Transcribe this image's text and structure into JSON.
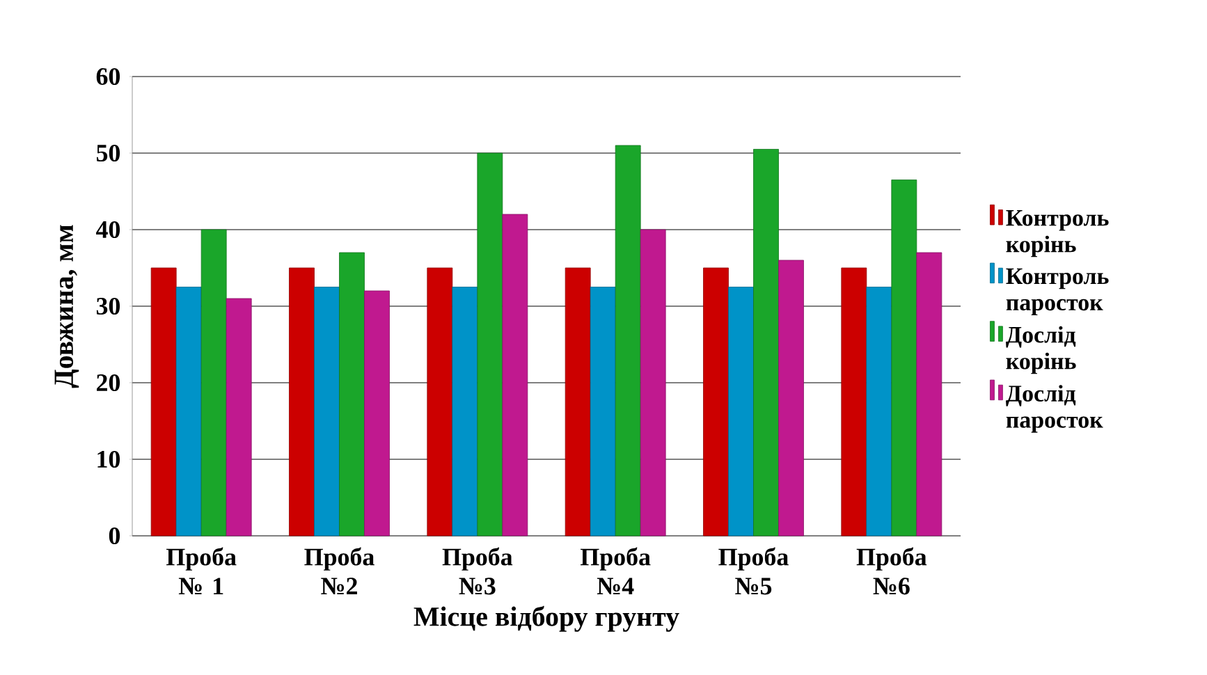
{
  "chart_data": {
    "type": "bar",
    "xlabel": "Місце відбору грунту",
    "ylabel": "Довжина, мм",
    "categories": [
      "Проба № 1",
      "Проба №2",
      "Проба №3",
      "Проба №4",
      "Проба №5",
      "Проба №6"
    ],
    "series": [
      {
        "name": "Контроль корінь",
        "color": "#cc0000",
        "values": [
          35,
          35,
          35,
          35,
          35,
          35
        ]
      },
      {
        "name": "Контроль паросток",
        "color": "#0093c8",
        "values": [
          32.5,
          32.5,
          32.5,
          32.5,
          32.5,
          32.5
        ]
      },
      {
        "name": "Дослід корінь",
        "color": "#1aa62a",
        "values": [
          40,
          37,
          50,
          51,
          50.5,
          46.5
        ]
      },
      {
        "name": "Дослід паросток",
        "color": "#c0198f",
        "values": [
          31,
          32,
          42,
          40,
          36,
          37
        ]
      }
    ],
    "ylim": [
      0,
      60
    ],
    "yticks": [
      0,
      10,
      20,
      30,
      40,
      50,
      60
    ],
    "grid": "y",
    "legend": "right"
  }
}
